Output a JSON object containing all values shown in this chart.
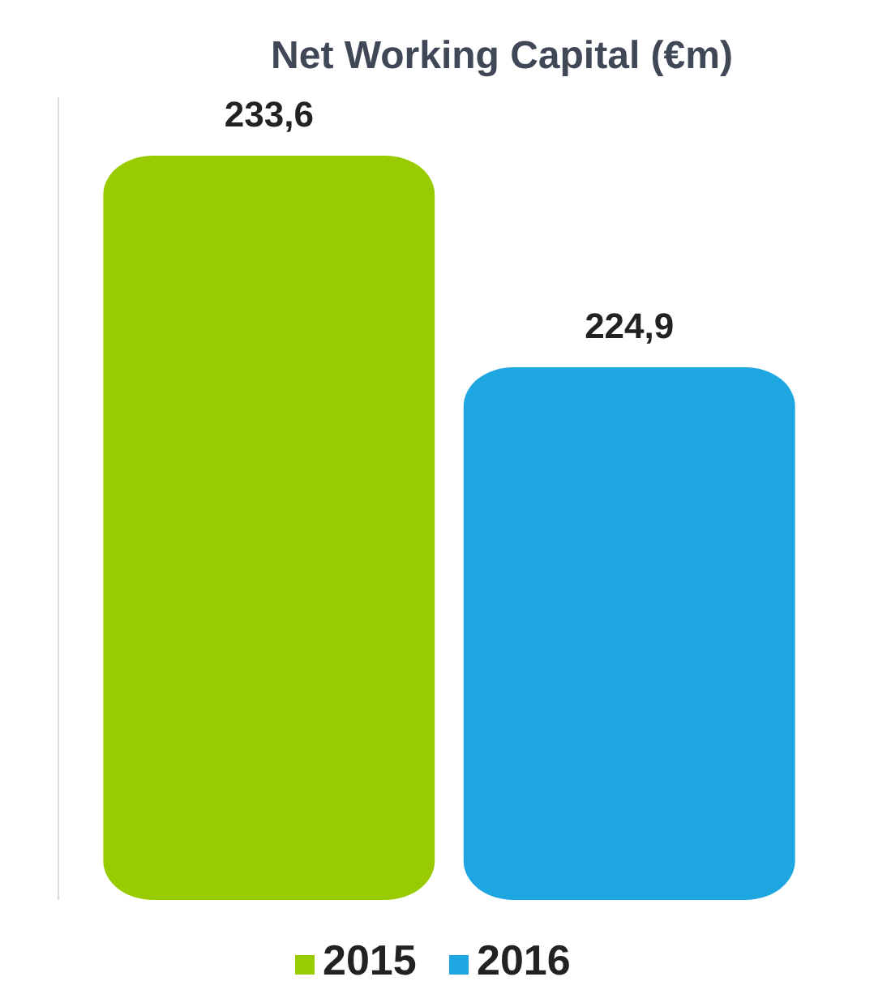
{
  "chart_data": {
    "type": "bar",
    "title": "Net Working Capital (€m)",
    "categories": [
      null
    ],
    "series": [
      {
        "name": "2015",
        "color": "#99cc00",
        "values": [
          233.6
        ],
        "value_labels": [
          "233,6"
        ]
      },
      {
        "name": "2016",
        "color": "#1ea6e0",
        "values": [
          224.9
        ],
        "value_labels": [
          "224,9"
        ]
      }
    ],
    "ylim": [
      203,
      236
    ],
    "tick_labels": false,
    "legend": "bottom"
  }
}
